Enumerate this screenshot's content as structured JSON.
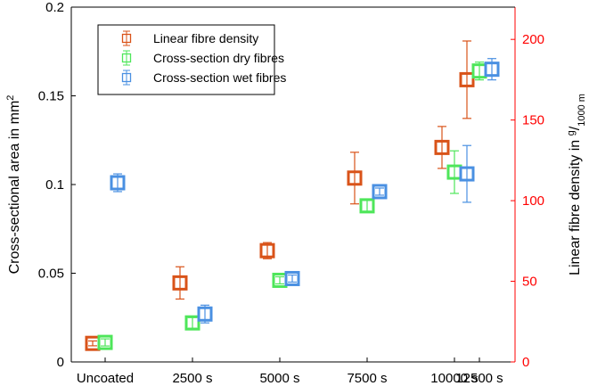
{
  "chart_data": {
    "type": "scatter",
    "categories": [
      "Uncoated",
      "2500 s",
      "5000 s",
      "7500 s",
      "10000 s",
      "12500 s"
    ],
    "left_axis": {
      "label_main": "Cross-sectional area in mm",
      "label_sup": "2",
      "ylim": [
        0,
        0.2
      ],
      "ticks": [
        0,
        0.05,
        0.1,
        0.15,
        0.2
      ],
      "tick_labels": [
        "0",
        "0.05",
        "0.1",
        "0.15",
        "0.2"
      ]
    },
    "right_axis": {
      "label_main": "Linear fibre density in ",
      "label_sup": "g",
      "label_sep": "/",
      "label_sub": "1000 m",
      "ylim": [
        0,
        220
      ],
      "ticks": [
        0,
        50,
        100,
        150,
        200
      ],
      "tick_labels": [
        "0",
        "50",
        "100",
        "150",
        "200"
      ],
      "color": "#ff0000"
    },
    "series": [
      {
        "name": "Linear fibre density",
        "axis": "right",
        "color": "#d95319",
        "values": [
          11.5,
          49,
          69,
          114,
          133,
          175
        ],
        "err_low": [
          1.5,
          10,
          5,
          16,
          13,
          24
        ],
        "err_high": [
          1.5,
          10,
          5,
          16,
          13,
          24
        ]
      },
      {
        "name": "Cross-section dry fibres",
        "axis": "left",
        "color": "#4ee65a",
        "values": [
          0.011,
          0.022,
          0.046,
          0.088,
          0.107,
          0.164
        ],
        "err_low": [
          0.002,
          0.003,
          0.002,
          0.003,
          0.012,
          0.005
        ],
        "err_high": [
          0.002,
          0.003,
          0.002,
          0.003,
          0.012,
          0.005
        ]
      },
      {
        "name": "Cross-section wet fibres",
        "axis": "left",
        "color": "#4a90e2",
        "values": [
          0.101,
          0.027,
          0.047,
          0.096,
          0.106,
          0.165
        ],
        "err_low": [
          0.005,
          0.005,
          0.002,
          0.002,
          0.016,
          0.006
        ],
        "err_high": [
          0.005,
          0.005,
          0.002,
          0.002,
          0.016,
          0.006
        ]
      }
    ],
    "legend_position": "top-left",
    "grid": false
  }
}
